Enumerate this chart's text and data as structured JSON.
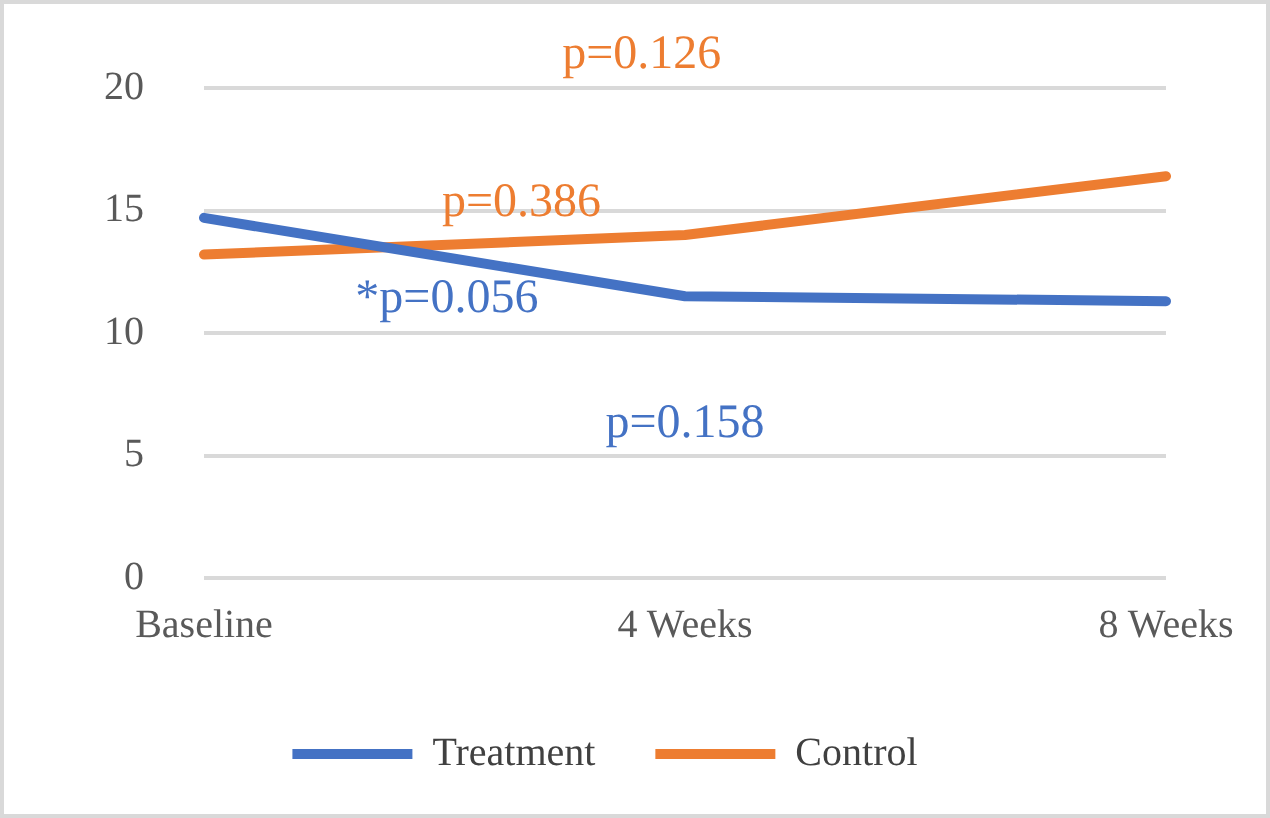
{
  "chart_data": {
    "type": "line",
    "categories": [
      "Baseline",
      "4 Weeks",
      "8 Weeks"
    ],
    "series": [
      {
        "name": "Treatment",
        "color": "#4472c4",
        "values": [
          14.7,
          11.5,
          11.3
        ]
      },
      {
        "name": "Control",
        "color": "#ed7d31",
        "values": [
          13.2,
          14.0,
          16.4
        ]
      }
    ],
    "ylim": [
      0,
      20
    ],
    "yticks": [
      0,
      5,
      10,
      15,
      20
    ],
    "grid": "y",
    "legend": "bottom",
    "marker": "none",
    "line_style": "solid",
    "annotations": [
      "*p=0.056",
      "p=0.158",
      "p=0.386",
      "p=0.126"
    ]
  }
}
